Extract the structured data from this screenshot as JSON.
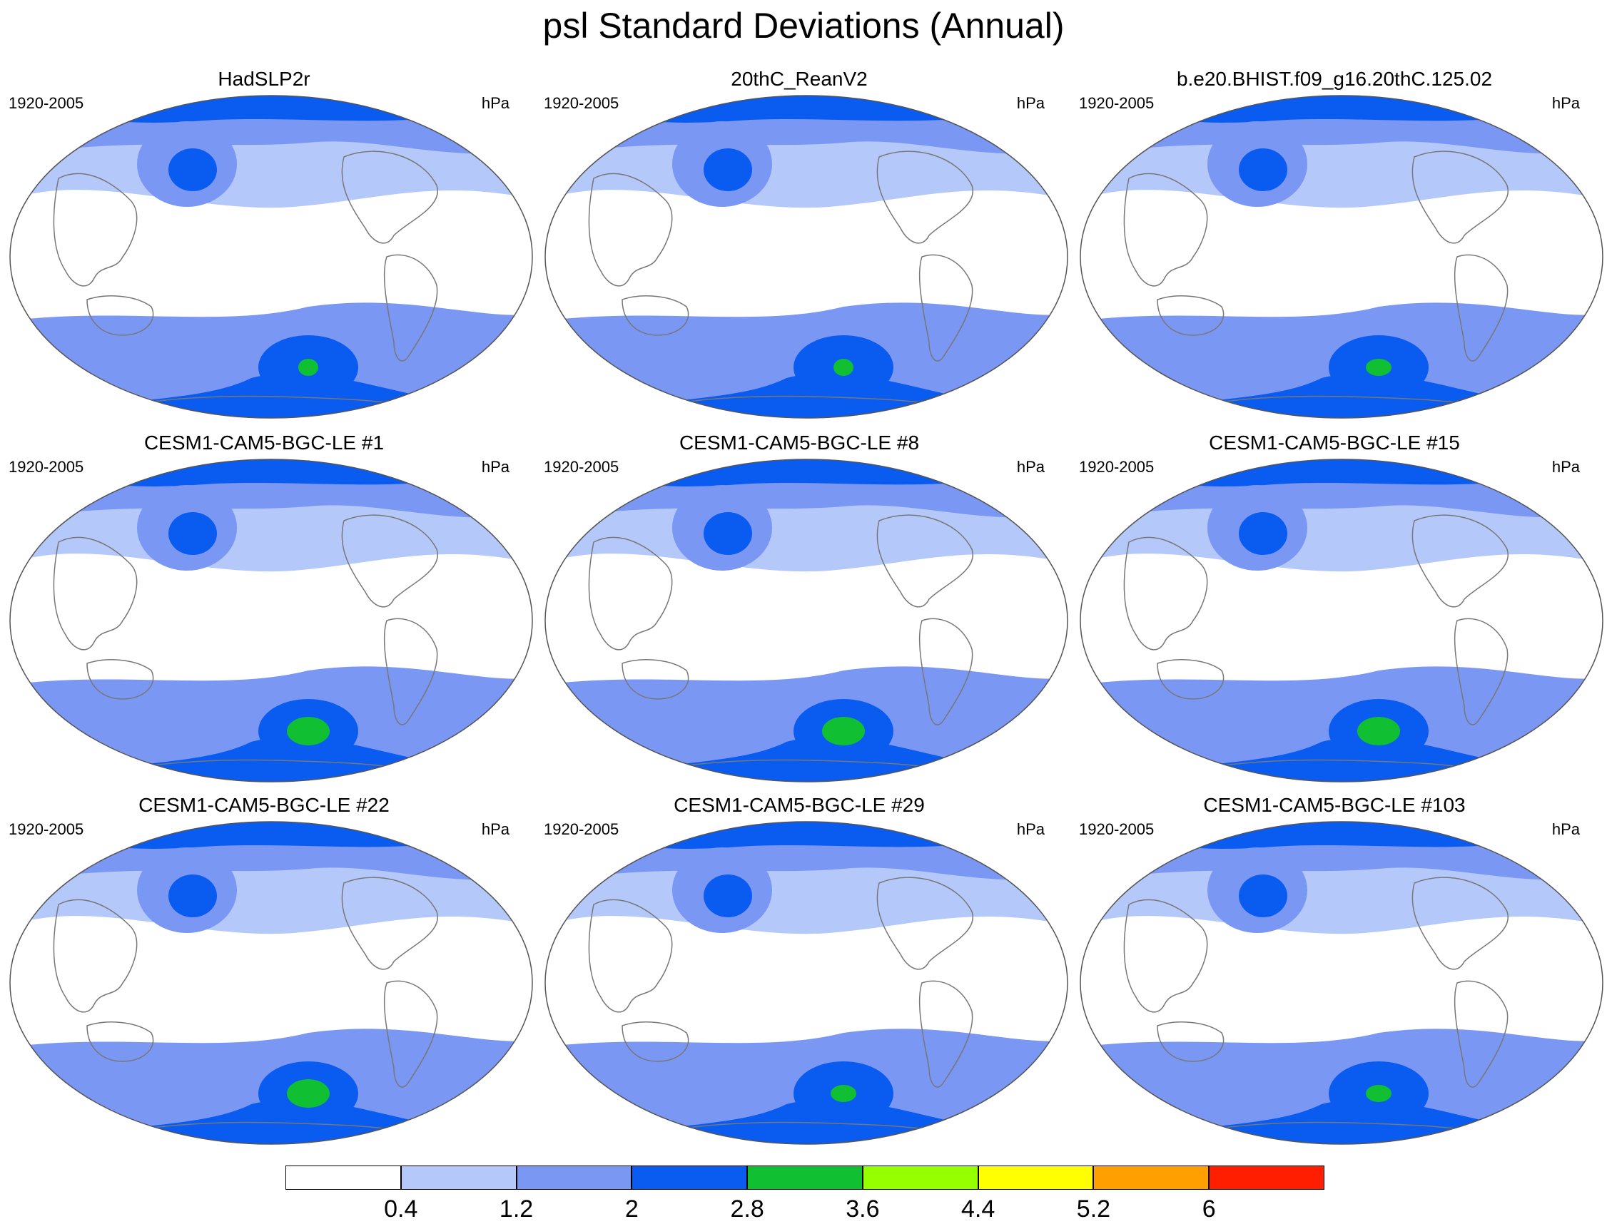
{
  "title": "psl Standard Deviations (Annual)",
  "period_label": "1920-2005",
  "units_label": "hPa",
  "panels": [
    {
      "name": "HadSLP2r",
      "intensity": 1
    },
    {
      "name": "20thC_ReanV2",
      "intensity": 1
    },
    {
      "name": "b.e20.BHIST.f09_g16.20thC.125.02",
      "intensity": 2
    },
    {
      "name": "CESM1-CAM5-BGC-LE #1",
      "intensity": 3
    },
    {
      "name": "CESM1-CAM5-BGC-LE #8",
      "intensity": 3
    },
    {
      "name": "CESM1-CAM5-BGC-LE #15",
      "intensity": 3
    },
    {
      "name": "CESM1-CAM5-BGC-LE #22",
      "intensity": 3
    },
    {
      "name": "CESM1-CAM5-BGC-LE #29",
      "intensity": 2
    },
    {
      "name": "CESM1-CAM5-BGC-LE #103",
      "intensity": 2
    }
  ],
  "colorbar": {
    "levels": [
      "0.4",
      "1.2",
      "2",
      "2.8",
      "3.6",
      "4.4",
      "5.2",
      "6"
    ],
    "colors": [
      "#ffffff",
      "#b4c8fa",
      "#7b97f4",
      "#0a5cf0",
      "#11bf33",
      "#96ff00",
      "#ffff00",
      "#ffa000",
      "#ff1e00"
    ]
  },
  "chart_data": {
    "type": "heatmap",
    "title": "psl Standard Deviations (Annual)",
    "units": "hPa",
    "period": "1920-2005",
    "colorbar_levels": [
      0.4,
      1.2,
      2,
      2.8,
      3.6,
      4.4,
      5.2,
      6
    ],
    "panel_titles": [
      "HadSLP2r",
      "20thC_ReanV2",
      "b.e20.BHIST.f09_g16.20thC.125.02",
      "CESM1-CAM5-BGC-LE #1",
      "CESM1-CAM5-BGC-LE #8",
      "CESM1-CAM5-BGC-LE #15",
      "CESM1-CAM5-BGC-LE #22",
      "CESM1-CAM5-BGC-LE #29",
      "CESM1-CAM5-BGC-LE #103"
    ]
  }
}
